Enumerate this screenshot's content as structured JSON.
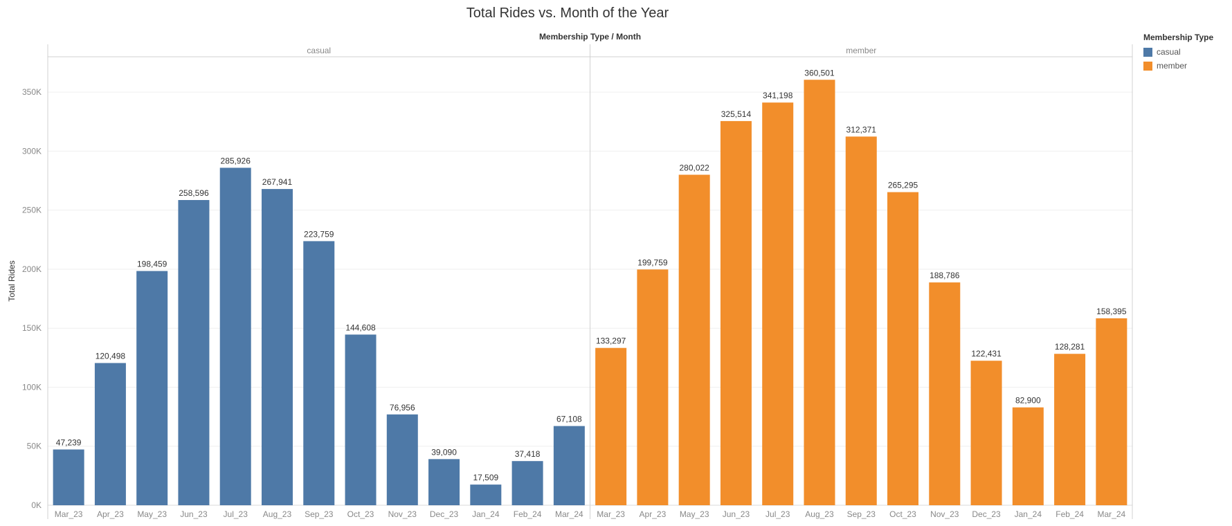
{
  "chart_data": {
    "type": "bar",
    "title": "Total Rides vs. Month of the Year",
    "column_header": "Membership Type  /  Month",
    "ylabel": "Total Rides",
    "ylim": [
      0,
      380000
    ],
    "yticks": [
      0,
      50000,
      100000,
      150000,
      200000,
      250000,
      300000,
      350000
    ],
    "ytick_labels": [
      "0K",
      "50K",
      "100K",
      "150K",
      "200K",
      "250K",
      "300K",
      "350K"
    ],
    "categories": [
      "Mar_23",
      "Apr_23",
      "May_23",
      "Jun_23",
      "Jul_23",
      "Aug_23",
      "Sep_23",
      "Oct_23",
      "Nov_23",
      "Dec_23",
      "Jan_24",
      "Feb_24",
      "Mar_24"
    ],
    "series": [
      {
        "name": "casual",
        "color": "#4e79a7",
        "values": [
          47239,
          120498,
          198459,
          258596,
          285926,
          267941,
          223759,
          144608,
          76956,
          39090,
          17509,
          37418,
          67108
        ],
        "value_labels": [
          "47,239",
          "120,498",
          "198,459",
          "258,596",
          "285,926",
          "267,941",
          "223,759",
          "144,608",
          "76,956",
          "39,090",
          "17,509",
          "37,418",
          "67,108"
        ]
      },
      {
        "name": "member",
        "color": "#f28e2b",
        "values": [
          133297,
          199759,
          280022,
          325514,
          341198,
          360501,
          312371,
          265295,
          188786,
          122431,
          82900,
          128281,
          158395
        ],
        "value_labels": [
          "133,297",
          "199,759",
          "280,022",
          "325,514",
          "341,198",
          "360,501",
          "312,371",
          "265,295",
          "188,786",
          "122,431",
          "82,900",
          "128,281",
          "158,395"
        ]
      }
    ],
    "grid": true,
    "legend": {
      "title": "Membership Type",
      "position": "right",
      "items": [
        "casual",
        "member"
      ]
    }
  }
}
